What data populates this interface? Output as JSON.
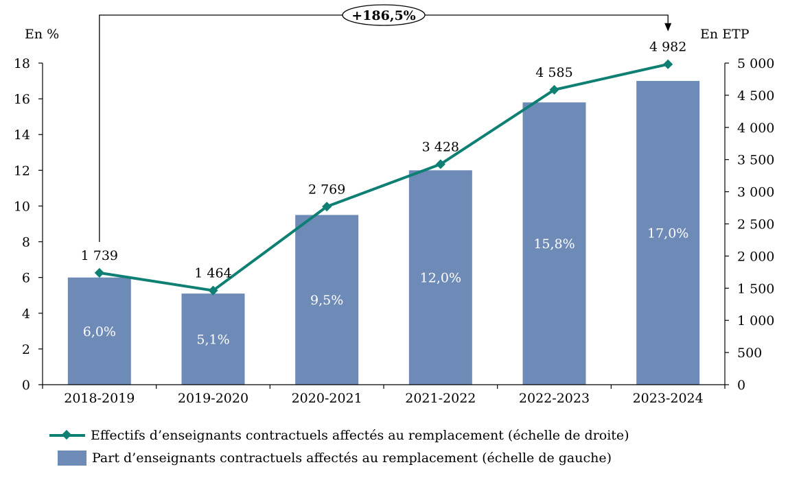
{
  "chart_data": {
    "type": "bar",
    "categories": [
      "2018-2019",
      "2019-2020",
      "2020-2021",
      "2021-2022",
      "2022-2023",
      "2023-2024"
    ],
    "y_left_unit": "En %",
    "y_right_unit": "En ETP",
    "ylim_left": [
      0,
      18
    ],
    "ylim_right": [
      0,
      5000
    ],
    "left_ticks": [
      "0",
      "2",
      "4",
      "6",
      "8",
      "10",
      "12",
      "14",
      "16",
      "18"
    ],
    "right_ticks": [
      "0",
      "500",
      "1 000",
      "1 500",
      "2 000",
      "2 500",
      "3 000",
      "3 500",
      "4 000",
      "4 500",
      "5 000"
    ],
    "series": [
      {
        "name": "Part d’enseignants contractuels affectés au remplacement (échelle de gauche)",
        "type": "bar",
        "axis": "left",
        "values": [
          6.0,
          5.1,
          9.5,
          12.0,
          15.8,
          17.0
        ],
        "labels": [
          "6,0%",
          "5,1%",
          "9,5%",
          "12,0%",
          "15,8%",
          "17,0%"
        ],
        "color": "#6d8bb6"
      },
      {
        "name": "Effectifs d’enseignants contractuels affectés au remplacement (échelle de droite)",
        "type": "line",
        "axis": "right",
        "values": [
          1739,
          1464,
          2769,
          3428,
          4585,
          4982
        ],
        "labels": [
          "1 739",
          "1 464",
          "2 769",
          "3 428",
          "4 585",
          "4 982"
        ],
        "color": "#0d7f73"
      }
    ],
    "annotation": "+186,5%",
    "grid": false,
    "legend_position": "bottom"
  }
}
